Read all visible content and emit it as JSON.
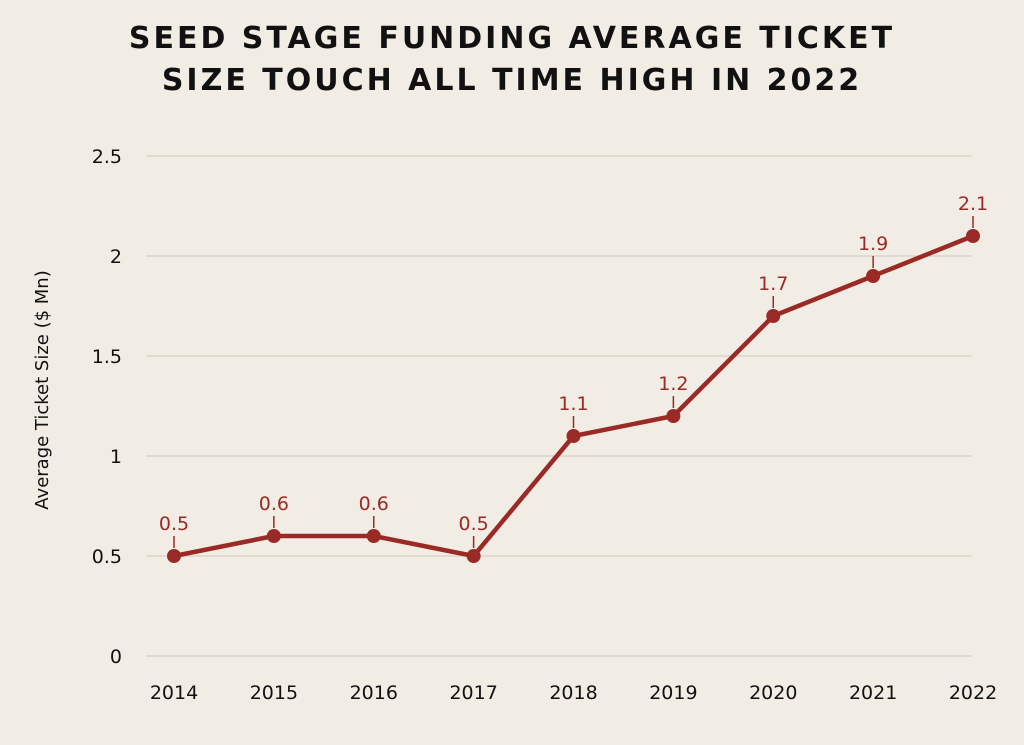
{
  "colors": {
    "background": "#f1ede4",
    "line": "#9a2a26",
    "grid": "#d6d0c4",
    "text": "#111111"
  },
  "chart_data": {
    "type": "line",
    "title_lines": [
      "SEED STAGE FUNDING AVERAGE TICKET",
      "SIZE TOUCH ALL TIME HIGH IN 2022"
    ],
    "xlabel": "",
    "ylabel": "Average Ticket Size ($ Mn)",
    "categories": [
      "2014",
      "2015",
      "2016",
      "2017",
      "2018",
      "2019",
      "2020",
      "2021",
      "2022"
    ],
    "values": [
      0.5,
      0.6,
      0.6,
      0.5,
      1.1,
      1.2,
      1.7,
      1.9,
      2.1
    ],
    "data_labels": [
      "0.5",
      "0.6",
      "0.6",
      "0.5",
      "1.1",
      "1.2",
      "1.7",
      "1.9",
      "2.1"
    ],
    "ylim": [
      0,
      2.5
    ],
    "yticks": [
      0,
      0.5,
      1,
      1.5,
      2,
      2.5
    ],
    "ytick_labels": [
      "0",
      "0.5",
      "1",
      "1.5",
      "2",
      "2.5"
    ],
    "grid": true,
    "legend": "none"
  }
}
